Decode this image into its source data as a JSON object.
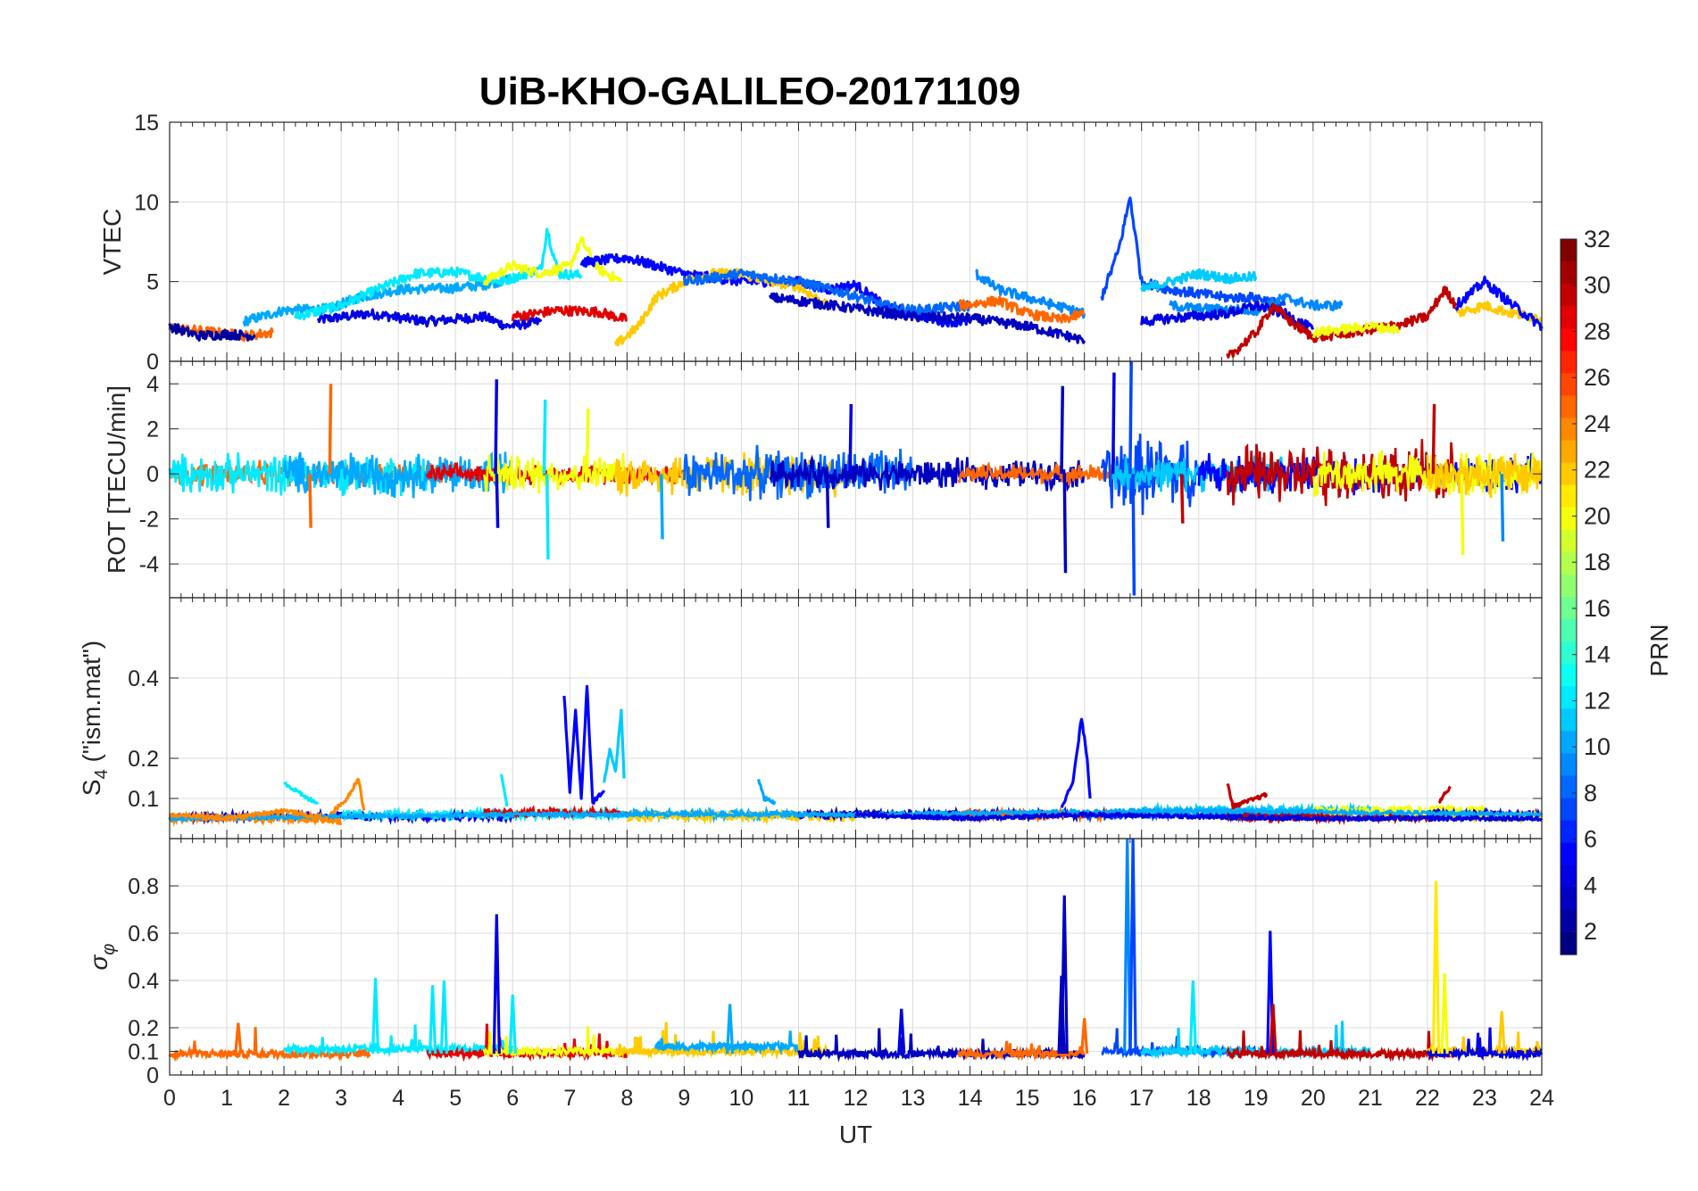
{
  "title": "UiB-KHO-GALILEO-20171109",
  "chart_data": [
    {
      "type": "line",
      "panel": "vtec",
      "ylabel": "VTEC",
      "ylim": [
        0,
        15
      ],
      "yticks": [
        0,
        5,
        10,
        15
      ],
      "xlim": [
        0,
        24
      ],
      "grid": true,
      "series": [
        {
          "prn": 4,
          "points": [
            [
              2.6,
              2.6
            ],
            [
              3.5,
              3.0
            ],
            [
              4.5,
              2.5
            ],
            [
              5.5,
              2.8
            ],
            [
              5.9,
              2.2
            ],
            [
              6.5,
              2.5
            ]
          ]
        },
        {
          "prn": 10,
          "points": [
            [
              1.3,
              2.5
            ],
            [
              2,
              3.2
            ],
            [
              2.8,
              3.3
            ],
            [
              3.3,
              4.0
            ],
            [
              4,
              4.5
            ],
            [
              5,
              4.6
            ],
            [
              5.5,
              4.8
            ],
            [
              6,
              5.2
            ]
          ]
        },
        {
          "prn": 12,
          "points": [
            [
              2.2,
              2.8
            ],
            [
              3,
              3.5
            ],
            [
              3.5,
              4.3
            ],
            [
              4.3,
              5.5
            ],
            [
              5,
              5.6
            ],
            [
              5.8,
              5.0
            ],
            [
              6.5,
              5.8
            ],
            [
              6.6,
              8.3
            ],
            [
              6.8,
              5.5
            ],
            [
              7.2,
              5.4
            ]
          ]
        },
        {
          "prn": 20,
          "points": [
            [
              5.5,
              5.0
            ],
            [
              6,
              6.0
            ],
            [
              6.5,
              5.5
            ],
            [
              7,
              6.0
            ],
            [
              7.2,
              7.6
            ],
            [
              7.5,
              5.8
            ],
            [
              7.9,
              5.0
            ]
          ]
        },
        {
          "prn": 29,
          "points": [
            [
              6,
              2.8
            ],
            [
              6.8,
              3.2
            ],
            [
              7.5,
              3.1
            ],
            [
              8,
              2.6
            ]
          ]
        },
        {
          "prn": 25,
          "points": [
            [
              0,
              2.1
            ],
            [
              0.6,
              1.9
            ],
            [
              1.3,
              1.6
            ],
            [
              1.8,
              1.8
            ]
          ]
        },
        {
          "prn": 2,
          "points": [
            [
              0,
              2.2
            ],
            [
              0.5,
              1.6
            ],
            [
              1,
              1.7
            ],
            [
              1.5,
              1.6
            ]
          ]
        },
        {
          "prn": 5,
          "points": [
            [
              7.2,
              6.2
            ],
            [
              8,
              6.5
            ],
            [
              8.5,
              6.0
            ],
            [
              9,
              5.5
            ],
            [
              10,
              5.0
            ],
            [
              11,
              5.0
            ],
            [
              11.5,
              4.5
            ],
            [
              12,
              4.8
            ],
            [
              12.5,
              3.5
            ],
            [
              13,
              3.0
            ],
            [
              13.5,
              2.5
            ],
            [
              14,
              2.5
            ]
          ]
        },
        {
          "prn": 22,
          "points": [
            [
              7.8,
              1.0
            ],
            [
              8.2,
              2.2
            ],
            [
              8.5,
              4.0
            ],
            [
              9,
              5.0
            ],
            [
              9.5,
              5.5
            ],
            [
              10,
              5.5
            ],
            [
              10.5,
              5.0
            ],
            [
              11,
              4.7
            ],
            [
              11.5,
              3.5
            ]
          ]
        },
        {
          "prn": 8,
          "points": [
            [
              9,
              5.0
            ],
            [
              10,
              5.5
            ],
            [
              11,
              5.0
            ],
            [
              11.8,
              4.3
            ],
            [
              12.5,
              3.5
            ],
            [
              13,
              3.2
            ],
            [
              14,
              3.5
            ]
          ]
        },
        {
          "prn": 3,
          "points": [
            [
              10.5,
              4.0
            ],
            [
              11,
              3.8
            ],
            [
              12,
              3.3
            ],
            [
              13,
              2.8
            ],
            [
              14,
              2.7
            ],
            [
              15,
              2.2
            ],
            [
              15.8,
              1.5
            ],
            [
              16,
              1.3
            ]
          ]
        },
        {
          "prn": 9,
          "points": [
            [
              14.1,
              5.5
            ],
            [
              14.5,
              4.5
            ],
            [
              15,
              4.0
            ],
            [
              15.5,
              3.5
            ],
            [
              16,
              3.0
            ]
          ]
        },
        {
          "prn": 25,
          "points": [
            [
              13.8,
              3.5
            ],
            [
              14.5,
              3.8
            ],
            [
              15,
              3.0
            ],
            [
              15.6,
              2.6
            ],
            [
              16,
              3.0
            ]
          ]
        },
        {
          "prn": 7,
          "points": [
            [
              16.3,
              4.0
            ],
            [
              16.6,
              7.0
            ],
            [
              16.8,
              10.3
            ],
            [
              17,
              5.0
            ],
            [
              17.5,
              4.5
            ],
            [
              18.5,
              4.0
            ],
            [
              19,
              4.0
            ],
            [
              19.5,
              3.5
            ]
          ]
        },
        {
          "prn": 11,
          "points": [
            [
              17,
              4.5
            ],
            [
              18,
              5.5
            ],
            [
              18.5,
              5.2
            ],
            [
              19,
              5.3
            ]
          ]
        },
        {
          "prn": 9,
          "points": [
            [
              17.5,
              3.5
            ],
            [
              18,
              3.3
            ],
            [
              19,
              3.2
            ],
            [
              19.5,
              4.0
            ],
            [
              20,
              3.5
            ],
            [
              20.5,
              3.5
            ]
          ]
        },
        {
          "prn": 4,
          "points": [
            [
              17,
              2.5
            ],
            [
              17.5,
              2.7
            ],
            [
              18.5,
              3.0
            ],
            [
              19,
              3.5
            ],
            [
              19.5,
              3.0
            ],
            [
              20,
              2.0
            ]
          ]
        },
        {
          "prn": 30,
          "points": [
            [
              18.5,
              0.2
            ],
            [
              19,
              1.8
            ],
            [
              19.3,
              3.5
            ],
            [
              19.6,
              2.5
            ],
            [
              20,
              1.5
            ],
            [
              20.5,
              1.7
            ],
            [
              21,
              2.0
            ],
            [
              21.5,
              2.3
            ],
            [
              22,
              2.8
            ],
            [
              22.3,
              4.5
            ],
            [
              22.5,
              3.5
            ]
          ]
        },
        {
          "prn": 20,
          "points": [
            [
              20,
              1.8
            ],
            [
              20.5,
              2.0
            ],
            [
              21,
              2.2
            ],
            [
              21.5,
              2.0
            ]
          ]
        },
        {
          "prn": 22,
          "points": [
            [
              22.5,
              3.0
            ],
            [
              23,
              3.5
            ],
            [
              23.5,
              3.0
            ],
            [
              24,
              2.7
            ]
          ]
        },
        {
          "prn": 5,
          "points": [
            [
              22.5,
              3.5
            ],
            [
              23,
              5.0
            ],
            [
              23.5,
              3.5
            ],
            [
              24,
              2.2
            ]
          ]
        }
      ]
    },
    {
      "type": "line",
      "panel": "rot",
      "ylabel": "ROT [TECU/min]",
      "ylim": [
        -5.5,
        5
      ],
      "yticks": [
        -4,
        -2,
        0,
        2,
        4
      ],
      "xlim": [
        0,
        24
      ],
      "grid": true,
      "spikes": [
        {
          "prn": 25,
          "x": 2.8,
          "y": 4.0
        },
        {
          "prn": 25,
          "x": 2.45,
          "y": -2.4
        },
        {
          "prn": 4,
          "x": 5.7,
          "y": 4.2
        },
        {
          "prn": 4,
          "x": 5.72,
          "y": -2.4
        },
        {
          "prn": 12,
          "x": 6.6,
          "y": -3.8
        },
        {
          "prn": 12,
          "x": 6.55,
          "y": 3.3
        },
        {
          "prn": 20,
          "x": 7.3,
          "y": 2.9
        },
        {
          "prn": 10,
          "x": 8.6,
          "y": -2.9
        },
        {
          "prn": 3,
          "x": 11.5,
          "y": -2.4
        },
        {
          "prn": 4,
          "x": 11.9,
          "y": 3.1
        },
        {
          "prn": 3,
          "x": 15.65,
          "y": -4.4
        },
        {
          "prn": 3,
          "x": 15.6,
          "y": 3.9
        },
        {
          "prn": 7,
          "x": 16.8,
          "y": 5.0
        },
        {
          "prn": 7,
          "x": 16.85,
          "y": -5.4
        },
        {
          "prn": 4,
          "x": 16.5,
          "y": 4.5
        },
        {
          "prn": 30,
          "x": 17.7,
          "y": -2.2
        },
        {
          "prn": 30,
          "x": 22.1,
          "y": 3.1
        },
        {
          "prn": 20,
          "x": 22.6,
          "y": -3.6
        },
        {
          "prn": 9,
          "x": 23.3,
          "y": -3.0
        }
      ]
    },
    {
      "type": "line",
      "panel": "s4",
      "ylabel": "S4 (\"ism.mat\")",
      "ylim": [
        0,
        0.6
      ],
      "yticks": [
        0.1,
        0.2,
        0.4
      ],
      "xlim": [
        0,
        24
      ],
      "grid": true,
      "series": [
        {
          "prn": 5,
          "points": [
            [
              6.9,
              0.36
            ],
            [
              7.0,
              0.12
            ],
            [
              7.1,
              0.32
            ],
            [
              7.2,
              0.1
            ],
            [
              7.3,
              0.38
            ],
            [
              7.4,
              0.09
            ],
            [
              7.6,
              0.12
            ]
          ]
        },
        {
          "prn": 11,
          "points": [
            [
              7.6,
              0.14
            ],
            [
              7.7,
              0.22
            ],
            [
              7.8,
              0.17
            ],
            [
              7.9,
              0.32
            ],
            [
              7.95,
              0.15
            ]
          ]
        },
        {
          "prn": 5,
          "points": [
            [
              15.6,
              0.08
            ],
            [
              15.8,
              0.14
            ],
            [
              15.95,
              0.3
            ],
            [
              16.05,
              0.2
            ],
            [
              16.1,
              0.1
            ]
          ]
        },
        {
          "prn": 12,
          "points": [
            [
              2.0,
              0.14
            ],
            [
              2.4,
              0.1
            ],
            [
              2.6,
              0.09
            ]
          ]
        },
        {
          "prn": 24,
          "points": [
            [
              2.8,
              0.06
            ],
            [
              3.1,
              0.1
            ],
            [
              3.3,
              0.15
            ],
            [
              3.4,
              0.07
            ]
          ]
        },
        {
          "prn": 10,
          "points": [
            [
              10.3,
              0.15
            ],
            [
              10.4,
              0.1
            ],
            [
              10.6,
              0.09
            ]
          ]
        },
        {
          "prn": 12,
          "points": [
            [
              5.8,
              0.16
            ],
            [
              5.9,
              0.08
            ]
          ]
        },
        {
          "prn": 30,
          "points": [
            [
              18.5,
              0.14
            ],
            [
              18.6,
              0.08
            ],
            [
              19.2,
              0.11
            ]
          ]
        },
        {
          "prn": 30,
          "points": [
            [
              22.2,
              0.09
            ],
            [
              22.4,
              0.13
            ]
          ]
        },
        {
          "prn": 10,
          "points": [
            [
              0,
              0.05
            ],
            [
              6,
              0.06
            ],
            [
              12,
              0.06
            ],
            [
              18,
              0.07
            ],
            [
              24,
              0.06
            ]
          ]
        },
        {
          "prn": 24,
          "points": [
            [
              0,
              0.06
            ],
            [
              1,
              0.05
            ],
            [
              2,
              0.07
            ],
            [
              3,
              0.04
            ]
          ]
        },
        {
          "prn": 4,
          "points": [
            [
              12,
              0.06
            ],
            [
              14,
              0.05
            ],
            [
              16,
              0.06
            ],
            [
              20,
              0.05
            ],
            [
              24,
              0.05
            ]
          ]
        }
      ]
    },
    {
      "type": "line",
      "panel": "sigma_phi",
      "ylabel": "σφ",
      "ylim": [
        0,
        1
      ],
      "yticks": [
        0,
        0.1,
        0.2,
        0.4,
        0.6,
        0.8
      ],
      "xlim": [
        0,
        24
      ],
      "xlabel": "UT",
      "xticks": [
        0,
        1,
        2,
        3,
        4,
        5,
        6,
        7,
        8,
        9,
        10,
        11,
        12,
        13,
        14,
        15,
        16,
        17,
        18,
        19,
        20,
        21,
        22,
        23,
        24
      ],
      "grid": true,
      "spikes": [
        {
          "prn": 25,
          "x": 1.2,
          "y": 0.22
        },
        {
          "prn": 12,
          "x": 3.6,
          "y": 0.41
        },
        {
          "prn": 12,
          "x": 4.6,
          "y": 0.38
        },
        {
          "prn": 12,
          "x": 4.8,
          "y": 0.4
        },
        {
          "prn": 4,
          "x": 5.72,
          "y": 0.68
        },
        {
          "prn": 12,
          "x": 6.0,
          "y": 0.34
        },
        {
          "prn": 10,
          "x": 9.8,
          "y": 0.3
        },
        {
          "prn": 4,
          "x": 12.8,
          "y": 0.28
        },
        {
          "prn": 3,
          "x": 15.65,
          "y": 0.76
        },
        {
          "prn": 3,
          "x": 15.6,
          "y": 0.42
        },
        {
          "prn": 25,
          "x": 16.0,
          "y": 0.24
        },
        {
          "prn": 9,
          "x": 16.75,
          "y": 1.0
        },
        {
          "prn": 7,
          "x": 16.85,
          "y": 1.0
        },
        {
          "prn": 12,
          "x": 17.9,
          "y": 0.4
        },
        {
          "prn": 5,
          "x": 19.25,
          "y": 0.61
        },
        {
          "prn": 30,
          "x": 19.3,
          "y": 0.3
        },
        {
          "prn": 21,
          "x": 22.15,
          "y": 0.82
        },
        {
          "prn": 20,
          "x": 22.3,
          "y": 0.43
        },
        {
          "prn": 22,
          "x": 23.3,
          "y": 0.27
        }
      ]
    },
    {
      "type": "heatmap",
      "panel": "colorbar",
      "label": "PRN",
      "range": [
        1,
        32
      ],
      "ticks": [
        2,
        4,
        6,
        8,
        10,
        12,
        14,
        16,
        18,
        20,
        22,
        24,
        26,
        28,
        30,
        32
      ],
      "colormap": "jet"
    }
  ]
}
